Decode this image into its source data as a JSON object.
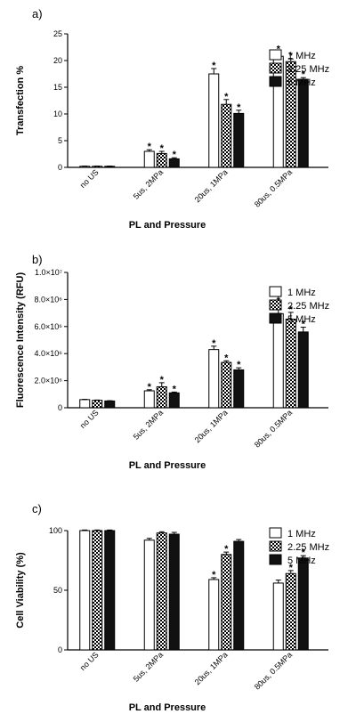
{
  "colors": {
    "series": [
      "#ffffff",
      "checker",
      "#111111"
    ],
    "stroke": "#000000"
  },
  "chart_data": [
    {
      "type": "bar",
      "panel_label": "a)",
      "title": "",
      "xlabel": "PL and Pressure",
      "ylabel": "Transfection %",
      "categories": [
        "no US",
        "5us, 2MPa",
        "20us, 1MPa",
        "80us, 0.5MPa"
      ],
      "ylim": [
        0,
        25
      ],
      "yticks": [
        0,
        5,
        10,
        15,
        20,
        25
      ],
      "ytick_labels": [
        "0",
        "5",
        "10",
        "15",
        "20",
        "25"
      ],
      "legend_position": "top-right",
      "series": [
        {
          "name": "1 MHz",
          "values": [
            0.2,
            3.0,
            17.5,
            20.8
          ],
          "errors": [
            0.05,
            0.3,
            1.0,
            0.8
          ],
          "significant": [
            false,
            true,
            true,
            true
          ]
        },
        {
          "name": "2.25 MHz",
          "values": [
            0.2,
            2.6,
            11.8,
            19.8
          ],
          "errors": [
            0.05,
            0.4,
            0.9,
            0.5
          ],
          "significant": [
            false,
            true,
            true,
            true
          ]
        },
        {
          "name": "5 MHz",
          "values": [
            0.2,
            1.6,
            10.1,
            16.5
          ],
          "errors": [
            0.05,
            0.2,
            0.6,
            0.3
          ],
          "significant": [
            false,
            true,
            true,
            true
          ]
        }
      ],
      "significance_marker": "*"
    },
    {
      "type": "bar",
      "panel_label": "b)",
      "title": "",
      "xlabel": "PL and Pressure",
      "ylabel": "Fluorescence Intensity (RFU)",
      "categories": [
        "no US",
        "5us, 2MPa",
        "20us, 1MPa",
        "80us, 0.5MPa"
      ],
      "ylim": [
        0,
        10000000
      ],
      "yticks": [
        0,
        2000000,
        4000000,
        6000000,
        8000000,
        10000000
      ],
      "ytick_labels": [
        "0",
        "2.0×10⁶",
        "4.0×10⁶",
        "6.0×10⁶",
        "8.0×10⁶",
        "1.0×10⁷"
      ],
      "legend_position": "top-right",
      "series": [
        {
          "name": "1 MHz",
          "values": [
            600000,
            1250000,
            4300000,
            6950000
          ],
          "errors": [
            20000,
            80000,
            250000,
            750000
          ],
          "significant": [
            false,
            true,
            true,
            true
          ]
        },
        {
          "name": "2.25 MHz",
          "values": [
            550000,
            1550000,
            3350000,
            6550000
          ],
          "errors": [
            20000,
            300000,
            120000,
            500000
          ],
          "significant": [
            false,
            true,
            true,
            true
          ]
        },
        {
          "name": "5 MHz",
          "values": [
            500000,
            1100000,
            2800000,
            5600000
          ],
          "errors": [
            20000,
            60000,
            150000,
            350000
          ],
          "significant": [
            false,
            true,
            true,
            true
          ]
        }
      ],
      "significance_marker": "*"
    },
    {
      "type": "bar",
      "panel_label": "c)",
      "title": "",
      "xlabel": "PL and Pressure",
      "ylabel": "Cell Viability (%)",
      "categories": [
        "no US",
        "5us, 2MPa",
        "20us, 1MPa",
        "80us, 0.5MPa"
      ],
      "ylim": [
        0,
        100
      ],
      "yticks": [
        0,
        50,
        100
      ],
      "ytick_labels": [
        "0",
        "50",
        "100"
      ],
      "legend_position": "top-right",
      "series": [
        {
          "name": "1 MHz",
          "values": [
            100,
            92,
            59,
            56
          ],
          "errors": [
            0.5,
            1.5,
            1.5,
            2.5
          ],
          "significant": [
            false,
            false,
            true,
            false
          ]
        },
        {
          "name": "2.25 MHz",
          "values": [
            100,
            98,
            80,
            64
          ],
          "errors": [
            0.5,
            1.0,
            2.0,
            2.5
          ],
          "significant": [
            false,
            false,
            true,
            true
          ]
        },
        {
          "name": "5 MHz",
          "values": [
            100,
            97,
            91,
            77
          ],
          "errors": [
            0.5,
            1.5,
            1.5,
            2.0
          ],
          "significant": [
            false,
            false,
            false,
            true
          ]
        }
      ],
      "significance_marker": "*"
    }
  ]
}
